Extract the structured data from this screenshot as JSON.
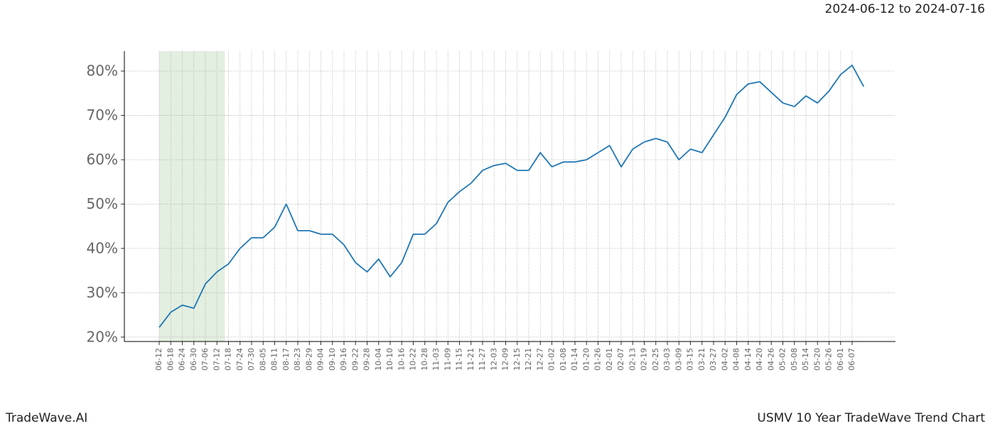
{
  "chart_data": {
    "type": "line",
    "date_range": "2024-06-12 to 2024-07-16",
    "footer_left": "TradeWave.AI",
    "footer_right": "USMV 10 Year TradeWave Trend Chart",
    "categories": [
      "06-12",
      "06-18",
      "06-24",
      "06-30",
      "07-06",
      "07-12",
      "07-18",
      "07-24",
      "07-30",
      "08-05",
      "08-11",
      "08-17",
      "08-23",
      "08-29",
      "09-04",
      "09-10",
      "09-16",
      "09-22",
      "09-28",
      "10-04",
      "10-10",
      "10-16",
      "10-22",
      "10-28",
      "11-03",
      "11-09",
      "11-15",
      "11-21",
      "11-27",
      "12-03",
      "12-09",
      "12-15",
      "12-21",
      "12-27",
      "01-02",
      "01-08",
      "01-14",
      "01-20",
      "01-26",
      "02-01",
      "02-07",
      "02-13",
      "02-19",
      "02-25",
      "03-03",
      "03-09",
      "03-15",
      "03-21",
      "03-27",
      "04-02",
      "04-08",
      "04-14",
      "04-20",
      "04-26",
      "05-02",
      "05-08",
      "05-14",
      "05-20",
      "05-26",
      "06-01",
      "06-07",
      null
    ],
    "series": [
      {
        "name": "USMV",
        "color": "#1f77b4",
        "values": [
          22.2,
          25.6,
          27.2,
          26.5,
          32,
          34.7,
          36.5,
          40,
          42.4,
          42.4,
          44.8,
          50,
          44,
          44,
          43.2,
          43.2,
          40.8,
          36.8,
          34.7,
          37.6,
          33.6,
          36.8,
          43.2,
          43.2,
          45.6,
          50.4,
          52.8,
          54.7,
          57.6,
          58.7,
          59.2,
          57.6,
          57.6,
          61.6,
          58.4,
          59.5,
          59.5,
          60,
          61.6,
          63.2,
          58.4,
          62.4,
          64,
          64.8,
          64,
          60,
          62.4,
          61.6,
          65.6,
          69.6,
          74.7,
          77.1,
          77.6,
          75.2,
          72.8,
          72,
          74.4,
          72.8,
          75.5,
          79.2,
          81.3,
          76.5
        ]
      }
    ],
    "ylim": [
      19,
      84.5
    ],
    "yticks": [
      {
        "value": 20,
        "label": "20%"
      },
      {
        "value": 30,
        "label": "30%"
      },
      {
        "value": 40,
        "label": "40%"
      },
      {
        "value": 50,
        "label": "50%"
      },
      {
        "value": 60,
        "label": "60%"
      },
      {
        "value": 70,
        "label": "70%"
      },
      {
        "value": 80,
        "label": "80%"
      }
    ],
    "grid": true,
    "highlight": {
      "from": "06-12",
      "to": "07-18",
      "color": "#e3efe0"
    }
  }
}
